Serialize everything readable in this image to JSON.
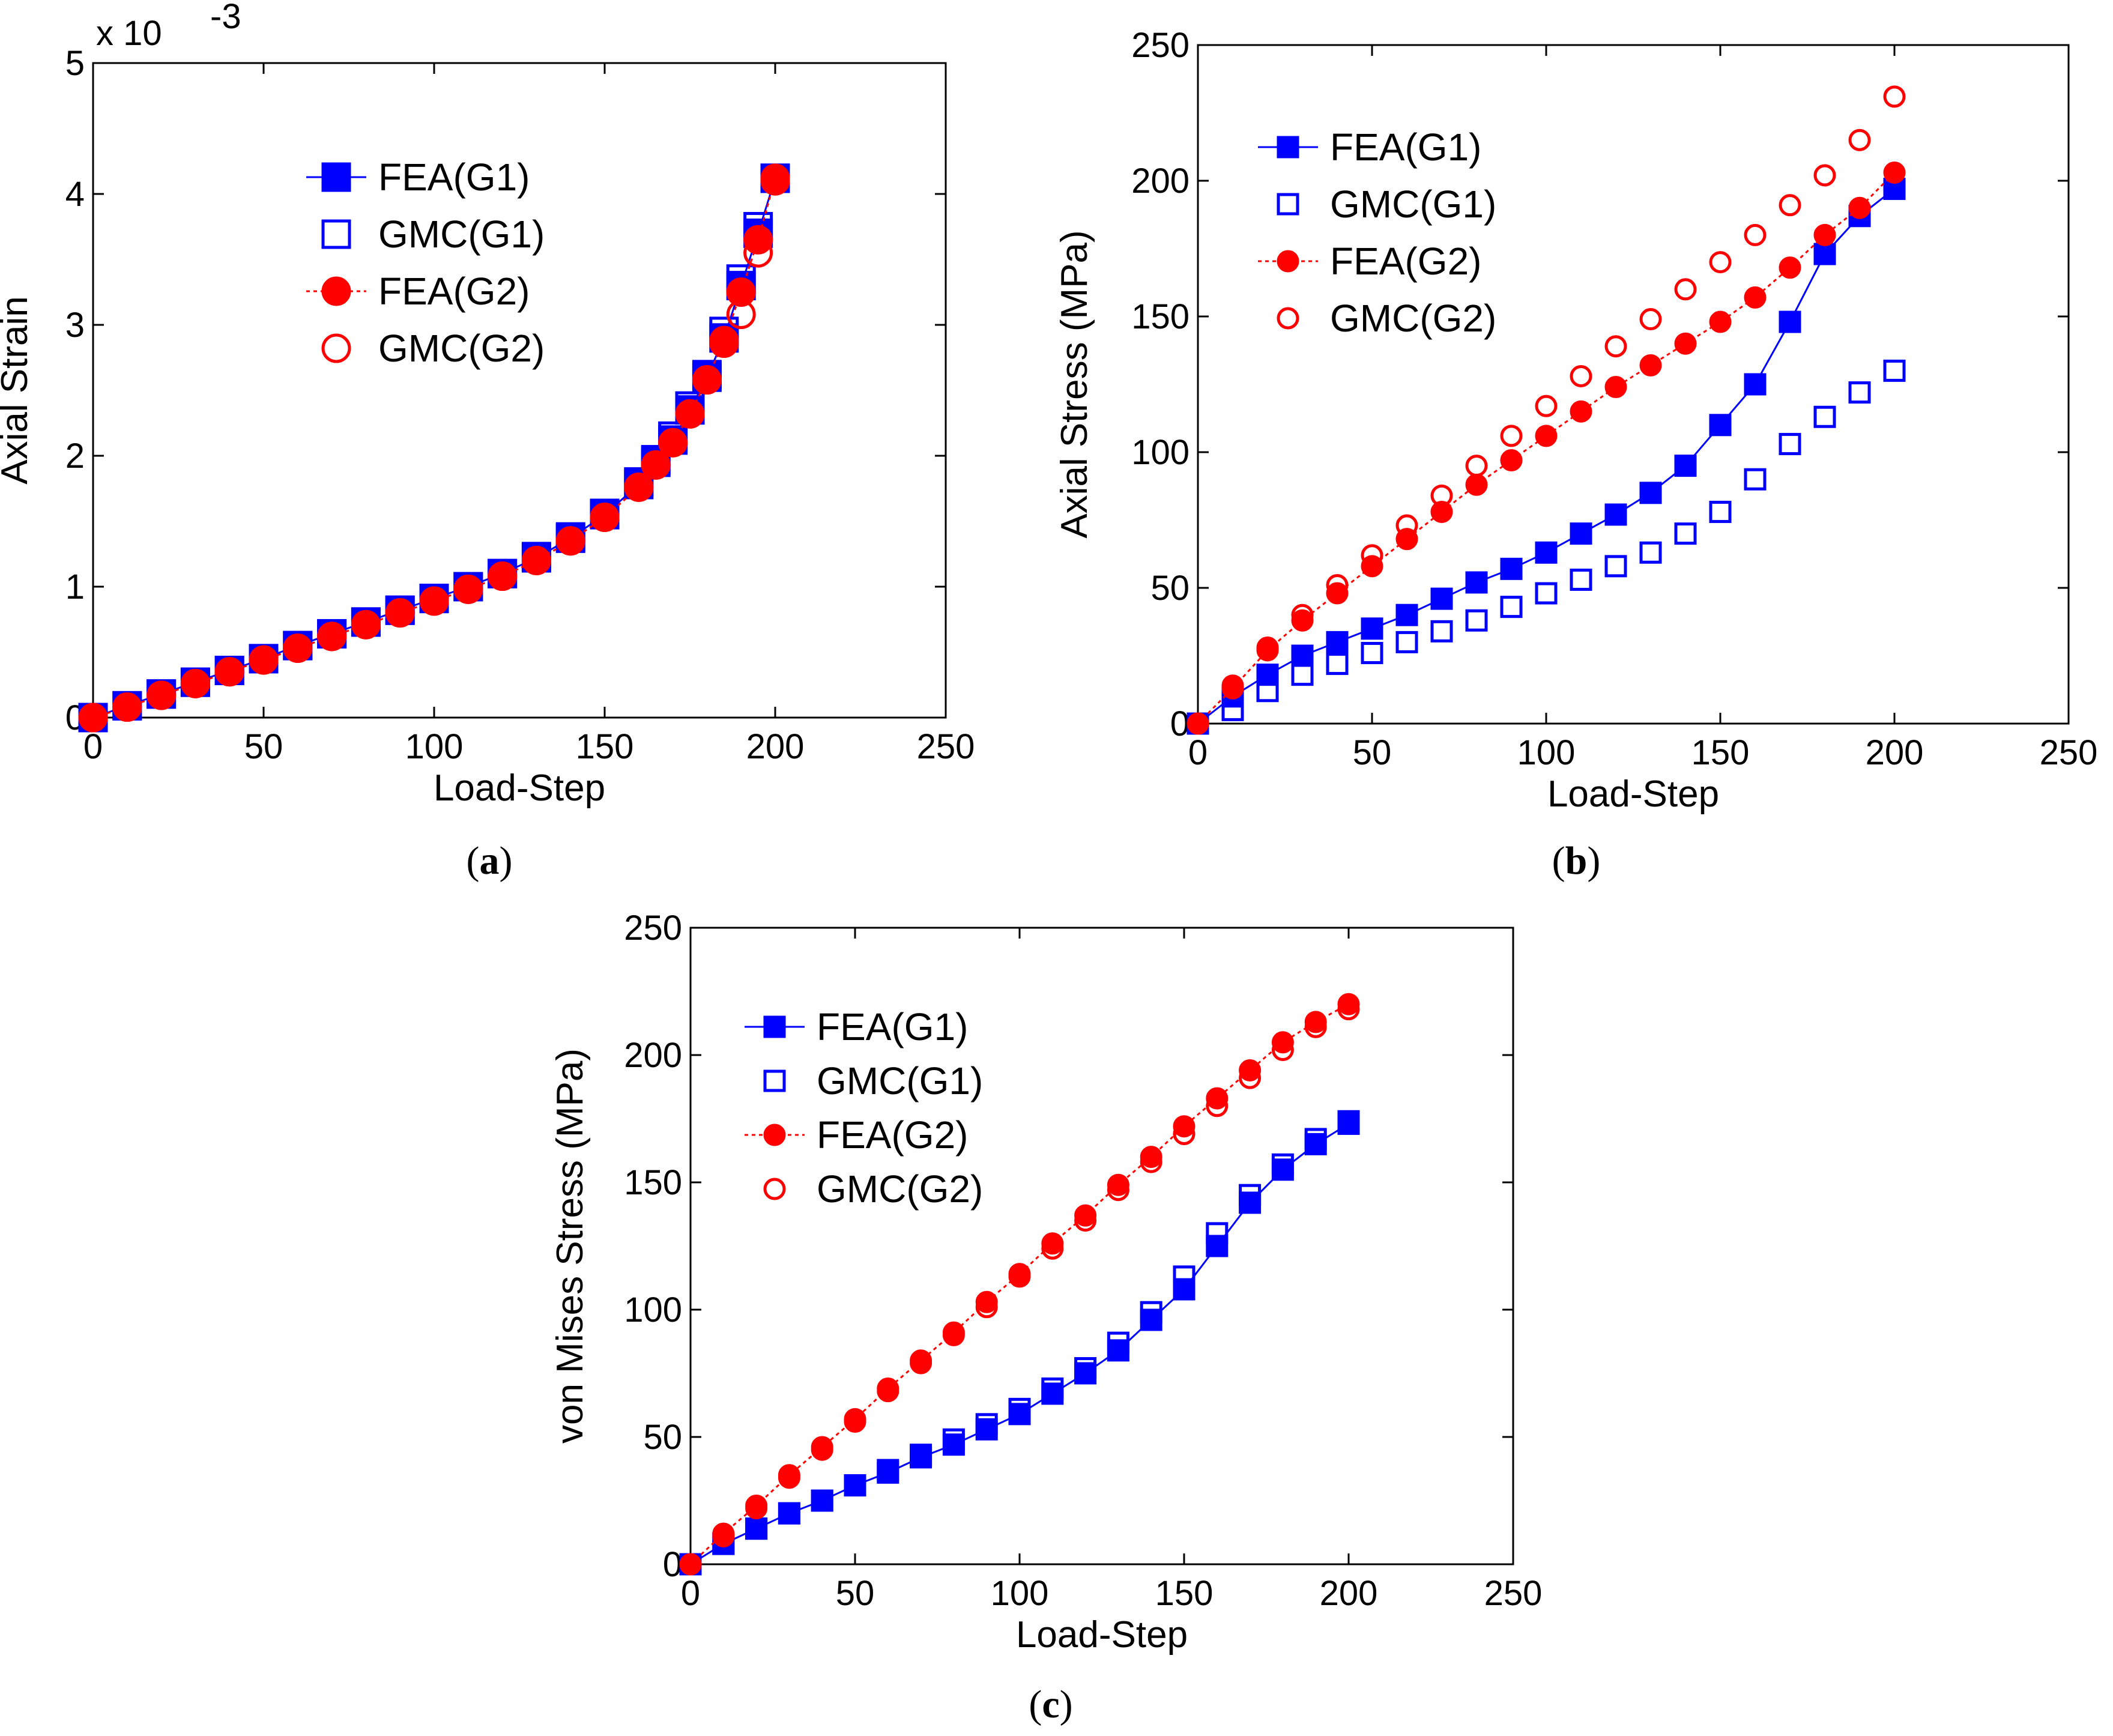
{
  "chart_data": [
    {
      "id": "a",
      "type": "line",
      "caption_letter": "a",
      "xlabel": "Load-Step",
      "ylabel": "Axial Strain",
      "y_multiplier": "x 10",
      "y_multiplier_exp": "-3",
      "xlim": [
        0,
        250
      ],
      "ylim": [
        0,
        5
      ],
      "xticks": [
        0,
        50,
        100,
        150,
        200,
        250
      ],
      "yticks": [
        0,
        1,
        2,
        3,
        4,
        5
      ],
      "grid": false,
      "legend_position": "top-center",
      "series": [
        {
          "name": "FEA(G1)",
          "color": "#0000ff",
          "marker": "square",
          "filled": true,
          "line": "solid",
          "x": [
            0,
            10,
            20,
            30,
            40,
            50,
            60,
            70,
            80,
            90,
            100,
            110,
            120,
            130,
            140,
            150,
            160,
            165,
            170,
            175,
            180,
            185,
            190,
            195,
            200
          ],
          "y": [
            0,
            0.09,
            0.18,
            0.27,
            0.36,
            0.45,
            0.55,
            0.64,
            0.73,
            0.82,
            0.91,
            1.0,
            1.1,
            1.22,
            1.37,
            1.55,
            1.78,
            1.95,
            2.12,
            2.35,
            2.6,
            2.9,
            3.3,
            3.7,
            4.12
          ]
        },
        {
          "name": "GMC(G1)",
          "color": "#0000ff",
          "marker": "square",
          "filled": false,
          "line": "none",
          "x": [
            0,
            10,
            20,
            30,
            40,
            50,
            60,
            70,
            80,
            90,
            100,
            110,
            120,
            130,
            140,
            150,
            160,
            165,
            170,
            175,
            180,
            185,
            190,
            195,
            200
          ],
          "y": [
            0,
            0.09,
            0.18,
            0.27,
            0.36,
            0.45,
            0.55,
            0.64,
            0.73,
            0.82,
            0.91,
            1.0,
            1.1,
            1.23,
            1.38,
            1.56,
            1.8,
            1.97,
            2.15,
            2.38,
            2.62,
            2.95,
            3.35,
            3.75,
            4.12
          ]
        },
        {
          "name": "FEA(G2)",
          "color": "#ff0000",
          "marker": "circle",
          "filled": true,
          "line": "dotted",
          "x": [
            0,
            10,
            20,
            30,
            40,
            50,
            60,
            70,
            80,
            90,
            100,
            110,
            120,
            130,
            140,
            150,
            160,
            165,
            170,
            175,
            180,
            185,
            190,
            195,
            200
          ],
          "y": [
            0,
            0.08,
            0.17,
            0.26,
            0.35,
            0.44,
            0.53,
            0.62,
            0.71,
            0.8,
            0.89,
            0.98,
            1.08,
            1.2,
            1.35,
            1.53,
            1.76,
            1.93,
            2.1,
            2.32,
            2.58,
            2.88,
            3.25,
            3.65,
            4.12
          ]
        },
        {
          "name": "GMC(G2)",
          "color": "#ff0000",
          "marker": "circle",
          "filled": false,
          "line": "none",
          "x": [
            0,
            10,
            20,
            30,
            40,
            50,
            60,
            70,
            80,
            90,
            100,
            110,
            120,
            130,
            140,
            150,
            160,
            165,
            170,
            175,
            180,
            185,
            190,
            195,
            200
          ],
          "y": [
            0,
            0.08,
            0.17,
            0.26,
            0.35,
            0.44,
            0.53,
            0.62,
            0.71,
            0.8,
            0.89,
            0.98,
            1.08,
            1.2,
            1.35,
            1.53,
            1.76,
            1.93,
            2.1,
            2.32,
            2.58,
            2.86,
            3.08,
            3.55,
            4.1
          ]
        }
      ]
    },
    {
      "id": "b",
      "type": "line",
      "caption_letter": "b",
      "xlabel": "Load-Step",
      "ylabel": "Axial Stress  (MPa)",
      "xlim": [
        0,
        250
      ],
      "ylim": [
        0,
        250
      ],
      "xticks": [
        0,
        50,
        100,
        150,
        200,
        250
      ],
      "yticks": [
        0,
        50,
        100,
        150,
        200,
        250
      ],
      "grid": false,
      "legend_position": "top-left",
      "series": [
        {
          "name": "FEA(G1)",
          "color": "#0000ff",
          "marker": "square",
          "filled": true,
          "line": "solid",
          "x": [
            0,
            10,
            20,
            30,
            40,
            50,
            60,
            70,
            80,
            90,
            100,
            110,
            120,
            130,
            140,
            150,
            160,
            170,
            180,
            190,
            200
          ],
          "y": [
            0,
            10,
            18,
            25,
            30,
            35,
            40,
            46,
            52,
            57,
            63,
            70,
            77,
            85,
            95,
            110,
            125,
            148,
            173,
            187,
            197
          ]
        },
        {
          "name": "GMC(G1)",
          "color": "#0000ff",
          "marker": "square",
          "filled": false,
          "line": "none",
          "x": [
            0,
            10,
            20,
            30,
            40,
            50,
            60,
            70,
            80,
            90,
            100,
            110,
            120,
            130,
            140,
            150,
            160,
            170,
            180,
            190,
            200
          ],
          "y": [
            0,
            5,
            12,
            18,
            22,
            26,
            30,
            34,
            38,
            43,
            48,
            53,
            58,
            63,
            70,
            78,
            90,
            103,
            113,
            122,
            130
          ]
        },
        {
          "name": "FEA(G2)",
          "color": "#ff0000",
          "marker": "circle",
          "filled": true,
          "line": "dotted",
          "x": [
            0,
            10,
            20,
            30,
            40,
            50,
            60,
            70,
            80,
            90,
            100,
            110,
            120,
            130,
            140,
            150,
            160,
            170,
            180,
            190,
            200
          ],
          "y": [
            0,
            13,
            27,
            38,
            48,
            58,
            68,
            78,
            88,
            97,
            106,
            115,
            124,
            132,
            140,
            148,
            157,
            168,
            180,
            190,
            203
          ]
        },
        {
          "name": "GMC(G2)",
          "color": "#ff0000",
          "marker": "circle",
          "filled": false,
          "line": "none",
          "x": [
            0,
            10,
            20,
            30,
            40,
            50,
            60,
            70,
            80,
            90,
            100,
            110,
            120,
            130,
            140,
            150,
            160,
            170,
            180,
            190,
            200
          ],
          "y": [
            0,
            14,
            28,
            40,
            51,
            62,
            73,
            84,
            95,
            106,
            117,
            128,
            139,
            149,
            160,
            170,
            180,
            191,
            202,
            215,
            231
          ]
        }
      ]
    },
    {
      "id": "c",
      "type": "line",
      "caption_letter": "c",
      "xlabel": "Load-Step",
      "ylabel": "von Mises Stress  (MPa)",
      "xlim": [
        0,
        250
      ],
      "ylim": [
        0,
        250
      ],
      "xticks": [
        0,
        50,
        100,
        150,
        200,
        250
      ],
      "yticks": [
        0,
        50,
        100,
        150,
        200,
        250
      ],
      "grid": false,
      "legend_position": "top-left",
      "series": [
        {
          "name": "FEA(G1)",
          "color": "#0000ff",
          "marker": "square",
          "filled": true,
          "line": "solid",
          "x": [
            0,
            10,
            20,
            30,
            40,
            50,
            60,
            70,
            80,
            90,
            100,
            110,
            120,
            130,
            140,
            150,
            160,
            170,
            180,
            190,
            200
          ],
          "y": [
            0,
            8,
            14,
            20,
            25,
            31,
            36,
            42,
            47,
            53,
            59,
            67,
            75,
            84,
            96,
            108,
            125,
            142,
            155,
            165,
            173
          ]
        },
        {
          "name": "GMC(G1)",
          "color": "#0000ff",
          "marker": "square",
          "filled": false,
          "line": "none",
          "x": [
            0,
            10,
            20,
            30,
            40,
            50,
            60,
            70,
            80,
            90,
            100,
            110,
            120,
            130,
            140,
            150,
            160,
            170,
            180,
            190,
            200
          ],
          "y": [
            0,
            8,
            14,
            20,
            25,
            31,
            37,
            43,
            49,
            55,
            61,
            69,
            77,
            87,
            99,
            113,
            130,
            145,
            157,
            167,
            174
          ]
        },
        {
          "name": "FEA(G2)",
          "color": "#ff0000",
          "marker": "circle",
          "filled": true,
          "line": "dotted",
          "x": [
            0,
            10,
            20,
            30,
            40,
            50,
            60,
            70,
            80,
            90,
            100,
            110,
            120,
            130,
            140,
            150,
            160,
            170,
            180,
            190,
            200
          ],
          "y": [
            0,
            12,
            23,
            35,
            46,
            57,
            69,
            80,
            91,
            103,
            114,
            126,
            137,
            149,
            160,
            172,
            183,
            194,
            205,
            213,
            220
          ]
        },
        {
          "name": "GMC(G2)",
          "color": "#ff0000",
          "marker": "circle",
          "filled": false,
          "line": "none",
          "x": [
            0,
            10,
            20,
            30,
            40,
            50,
            60,
            70,
            80,
            90,
            100,
            110,
            120,
            130,
            140,
            150,
            160,
            170,
            180,
            190,
            200
          ],
          "y": [
            0,
            11,
            22,
            34,
            45,
            56,
            68,
            79,
            90,
            101,
            113,
            124,
            135,
            147,
            158,
            169,
            180,
            191,
            202,
            211,
            218
          ]
        }
      ]
    }
  ]
}
